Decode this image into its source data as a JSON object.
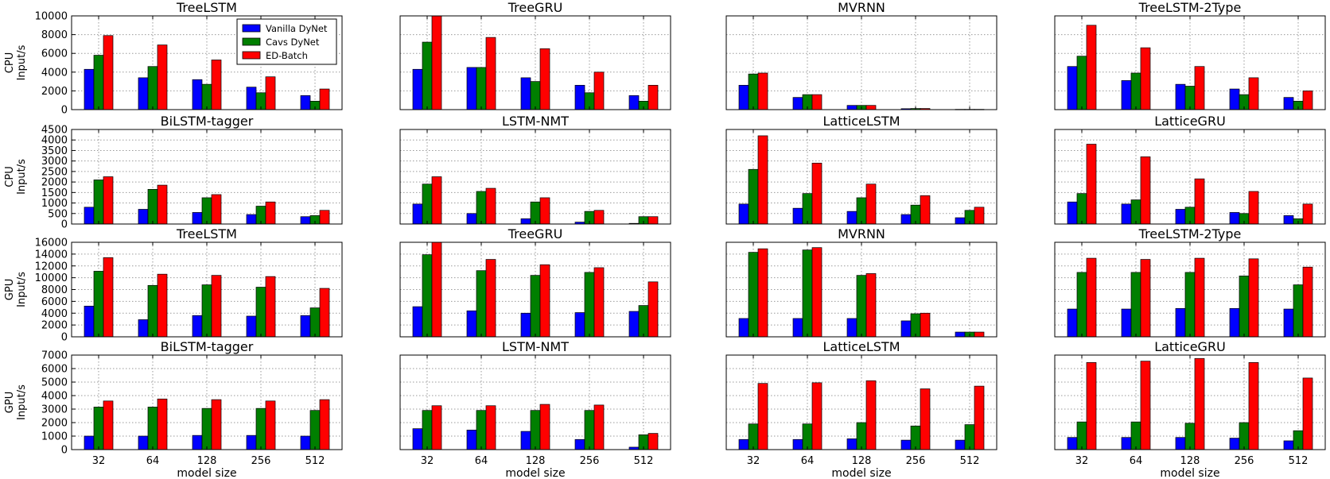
{
  "legend": {
    "entries": [
      "Vanilla DyNet",
      "Cavs DyNet",
      "ED-Batch"
    ]
  },
  "colors": {
    "series": [
      "#0000ff",
      "#007f00",
      "#ff0000"
    ],
    "grid": "#9a9a9a"
  },
  "chart_data": [
    {
      "type": "bar",
      "title": "TreeLSTM",
      "ylabel": [
        "CPU",
        "Input/s"
      ],
      "xlabel": "",
      "categories": [
        "32",
        "64",
        "128",
        "256",
        "512"
      ],
      "ylim": [
        0,
        10000
      ],
      "yticks": [
        0,
        2000,
        4000,
        6000,
        8000,
        10000
      ],
      "series": [
        {
          "name": "Vanilla DyNet",
          "values": [
            4300,
            3400,
            3200,
            2400,
            1500
          ]
        },
        {
          "name": "Cavs DyNet",
          "values": [
            5800,
            4600,
            2700,
            1800,
            900
          ]
        },
        {
          "name": "ED-Batch",
          "values": [
            7900,
            6900,
            5300,
            3500,
            2200
          ]
        }
      ]
    },
    {
      "type": "bar",
      "title": "TreeGRU",
      "ylabel": [],
      "xlabel": "",
      "categories": [
        "32",
        "64",
        "128",
        "256",
        "512"
      ],
      "ylim": [
        0,
        10000
      ],
      "yticks": [],
      "series": [
        {
          "name": "Vanilla DyNet",
          "values": [
            4300,
            4500,
            3400,
            2600,
            1500
          ]
        },
        {
          "name": "Cavs DyNet",
          "values": [
            7200,
            4500,
            3000,
            1800,
            900
          ]
        },
        {
          "name": "ED-Batch",
          "values": [
            10000,
            7700,
            6500,
            4000,
            2600
          ]
        }
      ]
    },
    {
      "type": "bar",
      "title": "MVRNN",
      "ylabel": [],
      "xlabel": "",
      "categories": [
        "32",
        "64",
        "128",
        "256",
        "512"
      ],
      "ylim": [
        0,
        10000
      ],
      "yticks": [],
      "series": [
        {
          "name": "Vanilla DyNet",
          "values": [
            2600,
            1300,
            450,
            100,
            30
          ]
        },
        {
          "name": "Cavs DyNet",
          "values": [
            3800,
            1600,
            450,
            120,
            30
          ]
        },
        {
          "name": "ED-Batch",
          "values": [
            3900,
            1600,
            450,
            120,
            30
          ]
        }
      ]
    },
    {
      "type": "bar",
      "title": "TreeLSTM-2Type",
      "ylabel": [],
      "xlabel": "",
      "categories": [
        "32",
        "64",
        "128",
        "256",
        "512"
      ],
      "ylim": [
        0,
        10000
      ],
      "yticks": [],
      "series": [
        {
          "name": "Vanilla DyNet",
          "values": [
            4600,
            3100,
            2700,
            2200,
            1300
          ]
        },
        {
          "name": "Cavs DyNet",
          "values": [
            5700,
            3900,
            2500,
            1600,
            900
          ]
        },
        {
          "name": "ED-Batch",
          "values": [
            9000,
            6600,
            4600,
            3400,
            2000
          ]
        }
      ]
    },
    {
      "type": "bar",
      "title": "BiLSTM-tagger",
      "ylabel": [
        "CPU",
        "Input/s"
      ],
      "xlabel": "",
      "categories": [
        "32",
        "64",
        "128",
        "256",
        "512"
      ],
      "ylim": [
        0,
        4500
      ],
      "yticks": [
        0,
        500,
        1000,
        1500,
        2000,
        2500,
        3000,
        3500,
        4000,
        4500
      ],
      "series": [
        {
          "name": "Vanilla DyNet",
          "values": [
            800,
            700,
            550,
            450,
            350
          ]
        },
        {
          "name": "Cavs DyNet",
          "values": [
            2100,
            1650,
            1250,
            850,
            400
          ]
        },
        {
          "name": "ED-Batch",
          "values": [
            2250,
            1850,
            1400,
            1050,
            650
          ]
        }
      ]
    },
    {
      "type": "bar",
      "title": "LSTM-NMT",
      "ylabel": [],
      "xlabel": "",
      "categories": [
        "32",
        "64",
        "128",
        "256",
        "512"
      ],
      "ylim": [
        0,
        4500
      ],
      "yticks": [],
      "series": [
        {
          "name": "Vanilla DyNet",
          "values": [
            950,
            500,
            250,
            90,
            30
          ]
        },
        {
          "name": "Cavs DyNet",
          "values": [
            1900,
            1550,
            1050,
            600,
            350
          ]
        },
        {
          "name": "ED-Batch",
          "values": [
            2250,
            1700,
            1250,
            650,
            350
          ]
        }
      ]
    },
    {
      "type": "bar",
      "title": "LatticeLSTM",
      "ylabel": [],
      "xlabel": "",
      "categories": [
        "32",
        "64",
        "128",
        "256",
        "512"
      ],
      "ylim": [
        0,
        4500
      ],
      "yticks": [],
      "series": [
        {
          "name": "Vanilla DyNet",
          "values": [
            950,
            750,
            600,
            450,
            300
          ]
        },
        {
          "name": "Cavs DyNet",
          "values": [
            2600,
            1450,
            1250,
            900,
            650
          ]
        },
        {
          "name": "ED-Batch",
          "values": [
            4200,
            2900,
            1900,
            1350,
            800
          ]
        }
      ]
    },
    {
      "type": "bar",
      "title": "LatticeGRU",
      "ylabel": [],
      "xlabel": "",
      "categories": [
        "32",
        "64",
        "128",
        "256",
        "512"
      ],
      "ylim": [
        0,
        4500
      ],
      "yticks": [],
      "series": [
        {
          "name": "Vanilla DyNet",
          "values": [
            1050,
            950,
            700,
            550,
            400
          ]
        },
        {
          "name": "Cavs DyNet",
          "values": [
            1450,
            1150,
            800,
            500,
            250
          ]
        },
        {
          "name": "ED-Batch",
          "values": [
            3800,
            3200,
            2150,
            1550,
            950
          ]
        }
      ]
    },
    {
      "type": "bar",
      "title": "TreeLSTM",
      "ylabel": [
        "GPU",
        "Input/s"
      ],
      "xlabel": "",
      "categories": [
        "32",
        "64",
        "128",
        "256",
        "512"
      ],
      "ylim": [
        0,
        16000
      ],
      "yticks": [
        0,
        2000,
        4000,
        6000,
        8000,
        10000,
        12000,
        14000,
        16000
      ],
      "series": [
        {
          "name": "Vanilla DyNet",
          "values": [
            5200,
            2900,
            3600,
            3500,
            3600
          ]
        },
        {
          "name": "Cavs DyNet",
          "values": [
            11100,
            8700,
            8800,
            8400,
            4900
          ]
        },
        {
          "name": "ED-Batch",
          "values": [
            13400,
            10600,
            10400,
            10200,
            8200
          ]
        }
      ]
    },
    {
      "type": "bar",
      "title": "TreeGRU",
      "ylabel": [],
      "xlabel": "",
      "categories": [
        "32",
        "64",
        "128",
        "256",
        "512"
      ],
      "ylim": [
        0,
        16000
      ],
      "yticks": [],
      "series": [
        {
          "name": "Vanilla DyNet",
          "values": [
            5100,
            4400,
            4000,
            4100,
            4300
          ]
        },
        {
          "name": "Cavs DyNet",
          "values": [
            13900,
            11200,
            10400,
            10900,
            5300
          ]
        },
        {
          "name": "ED-Batch",
          "values": [
            16000,
            13100,
            12200,
            11700,
            9300
          ]
        }
      ]
    },
    {
      "type": "bar",
      "title": "MVRNN",
      "ylabel": [],
      "xlabel": "",
      "categories": [
        "32",
        "64",
        "128",
        "256",
        "512"
      ],
      "ylim": [
        0,
        16000
      ],
      "yticks": [],
      "series": [
        {
          "name": "Vanilla DyNet",
          "values": [
            3100,
            3100,
            3100,
            2700,
            800
          ]
        },
        {
          "name": "Cavs DyNet",
          "values": [
            14300,
            14700,
            10400,
            3900,
            800
          ]
        },
        {
          "name": "ED-Batch",
          "values": [
            14900,
            15100,
            10700,
            4000,
            800
          ]
        }
      ]
    },
    {
      "type": "bar",
      "title": "TreeLSTM-2Type",
      "ylabel": [],
      "xlabel": "",
      "categories": [
        "32",
        "64",
        "128",
        "256",
        "512"
      ],
      "ylim": [
        0,
        16000
      ],
      "yticks": [],
      "series": [
        {
          "name": "Vanilla DyNet",
          "values": [
            4700,
            4700,
            4800,
            4800,
            4700
          ]
        },
        {
          "name": "Cavs DyNet",
          "values": [
            10900,
            10900,
            10900,
            10300,
            8800
          ]
        },
        {
          "name": "ED-Batch",
          "values": [
            13300,
            13100,
            13300,
            13200,
            11800
          ]
        }
      ]
    },
    {
      "type": "bar",
      "title": "BiLSTM-tagger",
      "ylabel": [
        "GPU",
        "Input/s"
      ],
      "xlabel": "model size",
      "categories": [
        "32",
        "64",
        "128",
        "256",
        "512"
      ],
      "ylim": [
        0,
        7000
      ],
      "yticks": [
        0,
        1000,
        2000,
        3000,
        4000,
        5000,
        6000,
        7000
      ],
      "series": [
        {
          "name": "Vanilla DyNet",
          "values": [
            1000,
            1000,
            1050,
            1050,
            1000
          ]
        },
        {
          "name": "Cavs DyNet",
          "values": [
            3150,
            3150,
            3050,
            3050,
            2900
          ]
        },
        {
          "name": "ED-Batch",
          "values": [
            3600,
            3750,
            3700,
            3600,
            3700
          ]
        }
      ]
    },
    {
      "type": "bar",
      "title": "LSTM-NMT",
      "ylabel": [],
      "xlabel": "model size",
      "categories": [
        "32",
        "64",
        "128",
        "256",
        "512"
      ],
      "ylim": [
        0,
        7000
      ],
      "yticks": [],
      "series": [
        {
          "name": "Vanilla DyNet",
          "values": [
            1550,
            1450,
            1350,
            750,
            180
          ]
        },
        {
          "name": "Cavs DyNet",
          "values": [
            2900,
            2900,
            2900,
            2900,
            1100
          ]
        },
        {
          "name": "ED-Batch",
          "values": [
            3250,
            3250,
            3350,
            3300,
            1200
          ]
        }
      ]
    },
    {
      "type": "bar",
      "title": "LatticeLSTM",
      "ylabel": [],
      "xlabel": "model size",
      "categories": [
        "32",
        "64",
        "128",
        "256",
        "512"
      ],
      "ylim": [
        0,
        7000
      ],
      "yticks": [],
      "series": [
        {
          "name": "Vanilla DyNet",
          "values": [
            750,
            750,
            800,
            700,
            700
          ]
        },
        {
          "name": "Cavs DyNet",
          "values": [
            1900,
            1900,
            2000,
            1750,
            1850
          ]
        },
        {
          "name": "ED-Batch",
          "values": [
            4900,
            4950,
            5100,
            4500,
            4700
          ]
        }
      ]
    },
    {
      "type": "bar",
      "title": "LatticeGRU",
      "ylabel": [],
      "xlabel": "model size",
      "categories": [
        "32",
        "64",
        "128",
        "256",
        "512"
      ],
      "ylim": [
        0,
        7000
      ],
      "yticks": [],
      "series": [
        {
          "name": "Vanilla DyNet",
          "values": [
            900,
            900,
            900,
            850,
            650
          ]
        },
        {
          "name": "Cavs DyNet",
          "values": [
            2050,
            2050,
            1950,
            2000,
            1400
          ]
        },
        {
          "name": "ED-Batch",
          "values": [
            6450,
            6550,
            6750,
            6450,
            5300
          ]
        }
      ]
    }
  ]
}
